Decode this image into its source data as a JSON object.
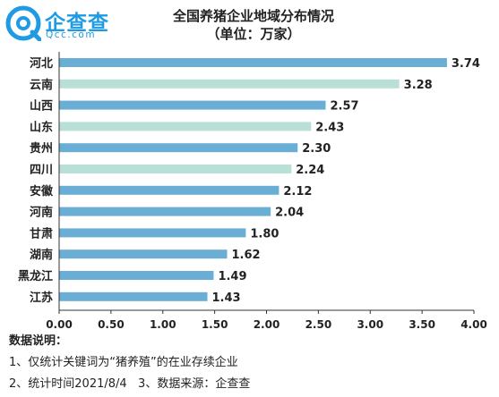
{
  "brand": {
    "name": "企查查",
    "sub": "Qcc.com",
    "color": "#1e9be3"
  },
  "colors": {
    "bar_blue": "#6aaed6",
    "bar_mint": "#b8e0d6",
    "axis": "#333333",
    "text": "#222222"
  },
  "chart_data": {
    "type": "bar",
    "orientation": "horizontal",
    "title": "全国养猪企业地域分布情况",
    "subtitle": "（单位：万家）",
    "categories": [
      "河北",
      "云南",
      "山西",
      "山东",
      "贵州",
      "四川",
      "安徽",
      "河南",
      "甘肃",
      "湖南",
      "黑龙江",
      "江苏"
    ],
    "values": [
      3.74,
      3.28,
      2.57,
      2.43,
      2.3,
      2.24,
      2.12,
      2.04,
      1.8,
      1.62,
      1.49,
      1.43
    ],
    "value_labels": [
      "3.74",
      "3.28",
      "2.57",
      "2.43",
      "2.30",
      "2.24",
      "2.12",
      "2.04",
      "1.80",
      "1.62",
      "1.49",
      "1.43"
    ],
    "bar_colors": [
      "#6aaed6",
      "#b8e0d6",
      "#6aaed6",
      "#b8e0d6",
      "#6aaed6",
      "#b8e0d6",
      "#6aaed6",
      "#6aaed6",
      "#6aaed6",
      "#6aaed6",
      "#6aaed6",
      "#6aaed6"
    ],
    "xlim": [
      0,
      4.0
    ],
    "xticks": [
      "0.00",
      "0.50",
      "1.00",
      "1.50",
      "2.00",
      "2.50",
      "3.00",
      "3.50",
      "4.00"
    ],
    "grid": false,
    "xlabel": "",
    "ylabel": ""
  },
  "notes": {
    "heading": "数据说明：",
    "line1": "1、仅统计关键词为“猪养殖”的在业存续企业",
    "line2": "2、统计时间2021/8/4   3、数据来源：企查查"
  }
}
